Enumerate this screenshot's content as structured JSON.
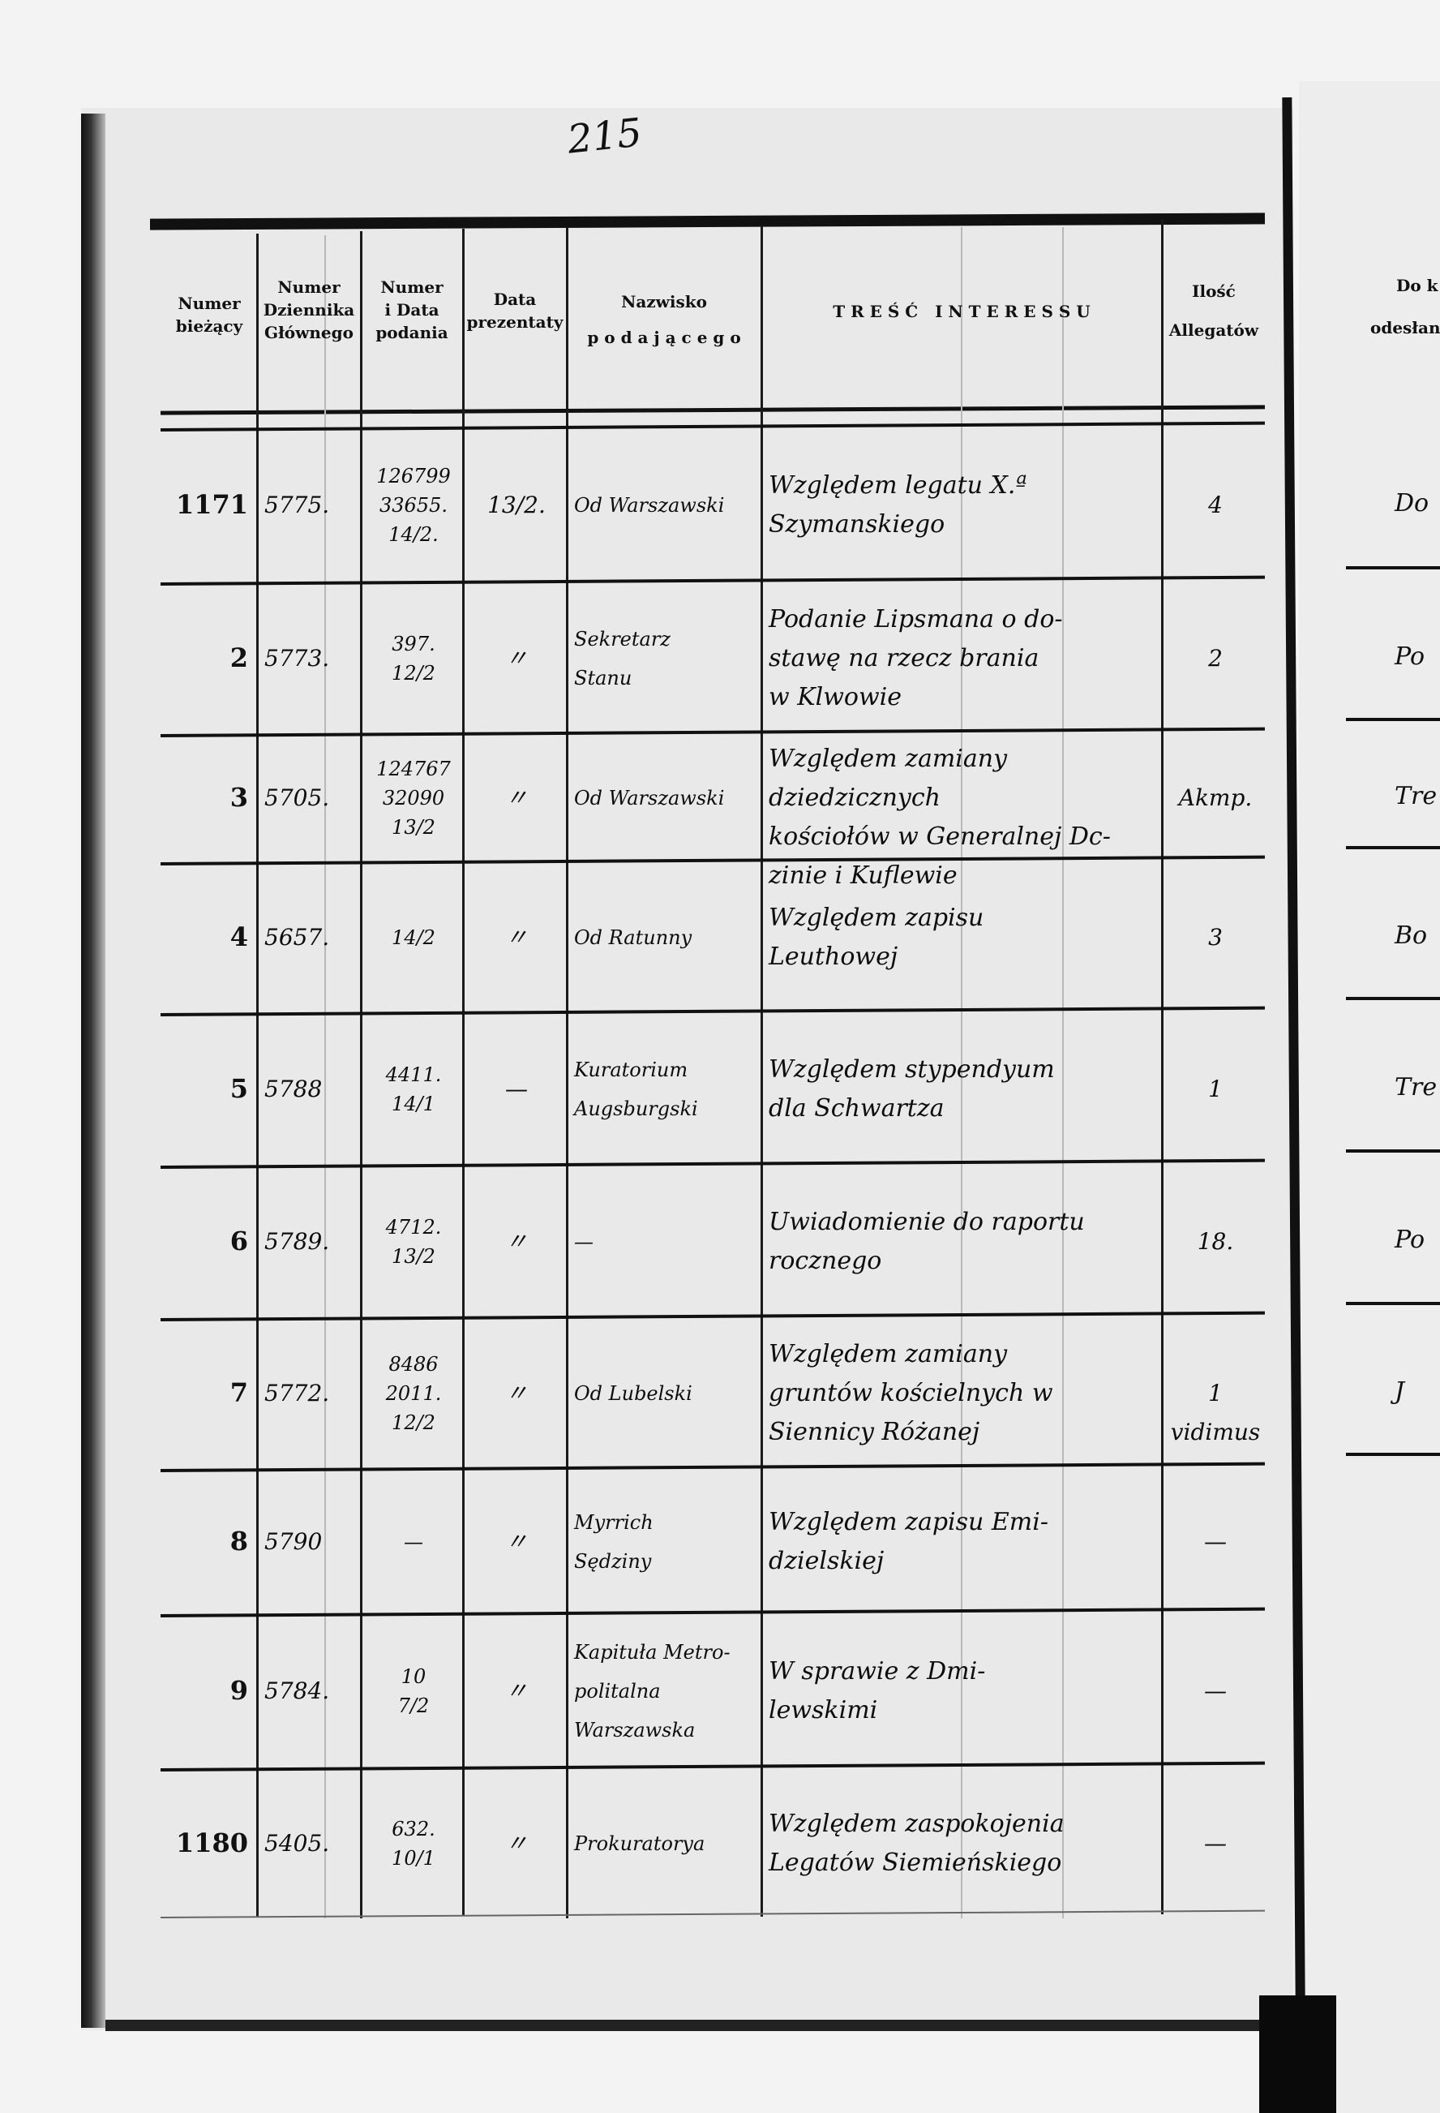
{
  "page_number": "215",
  "header": {
    "col_numer_biezacy": "Numer\nbieżący",
    "col_dziennik": "Numer\nDziennika\nGłównego",
    "col_podania": "Numer\ni Data\npodania",
    "col_prezentaty": "Data\nprezentaty",
    "col_nazwisko": "Nazwisko\np o d a j ą c e g o",
    "col_tresc": "T R E Ś Ć   I N T E R E S S U",
    "col_allegaty": "Ilość\nAllegatów"
  },
  "rows": [
    {
      "numer": "1171",
      "dziennik": "5775.",
      "podania": "126799\n33655.\n14/2.",
      "prezentaty": "13/2.",
      "nazwisko": "Od Warszawski",
      "tresc": "Względem legatu X.ª\nSzymanskiego",
      "allegaty": "4"
    },
    {
      "numer": "2",
      "dziennik": "5773.",
      "podania": "397.\n12/2",
      "prezentaty": "〃",
      "nazwisko": "Sekretarz\nStanu",
      "tresc": "Podanie Lipsmana o do-\nstawę na rzecz brania\nw Klwowie",
      "allegaty": "2"
    },
    {
      "numer": "3",
      "dziennik": "5705.",
      "podania": "124767\n32090\n13/2",
      "prezentaty": "〃",
      "nazwisko": "Od Warszawski",
      "tresc": "Względem zamiany dziedzicznych\nkościołów w Generalnej Dc-\nzinie i Kuflewie",
      "allegaty": "Akmp."
    },
    {
      "numer": "4",
      "dziennik": "5657.",
      "podania": "14/2",
      "prezentaty": "〃",
      "nazwisko": "Od Ratunny",
      "tresc": "Względem zapisu\nLeuthowej",
      "allegaty": "3"
    },
    {
      "numer": "5",
      "dziennik": "5788",
      "podania": "4411.\n14/1",
      "prezentaty": "—",
      "nazwisko": "Kuratorium\nAugsburgski",
      "tresc": "Względem stypendyum\ndla Schwartza",
      "allegaty": "1"
    },
    {
      "numer": "6",
      "dziennik": "5789.",
      "podania": "4712.\n13/2",
      "prezentaty": "〃",
      "nazwisko": "—",
      "tresc": "Uwiadomienie do raportu\nrocznego",
      "allegaty": "18."
    },
    {
      "numer": "7",
      "dziennik": "5772.",
      "podania": "8486\n2011.\n12/2",
      "prezentaty": "〃",
      "nazwisko": "Od Lubelski",
      "tresc": "Względem zamiany\ngruntów kościelnych w\nSiennicy Różanej",
      "allegaty": "1 vidimus"
    },
    {
      "numer": "8",
      "dziennik": "5790",
      "podania": "—",
      "prezentaty": "〃",
      "nazwisko": "Myrrich\nSędziny",
      "tresc": "Względem zapisu Emi-\ndzielskiej",
      "allegaty": "—"
    },
    {
      "numer": "9",
      "dziennik": "5784.",
      "podania": "10\n7/2",
      "prezentaty": "〃",
      "nazwisko": "Kapituła Metro-\npolitalna\nWarszawska",
      "tresc": "W sprawie z Dmi-\nlewskimi",
      "allegaty": "—"
    },
    {
      "numer": "1180",
      "dziennik": "5405.",
      "podania": "632.\n10/1",
      "prezentaty": "〃",
      "nazwisko": "Prokuratorya",
      "tresc": "Względem zaspokojenia\nLegatów Siemieńskiego",
      "allegaty": "—"
    }
  ],
  "right_page": {
    "header_line1": "Do k",
    "header_line2": "odesłano",
    "entries": [
      "Do",
      "Po",
      "Tre",
      "Bo",
      "Tre",
      "Po",
      "J"
    ]
  }
}
